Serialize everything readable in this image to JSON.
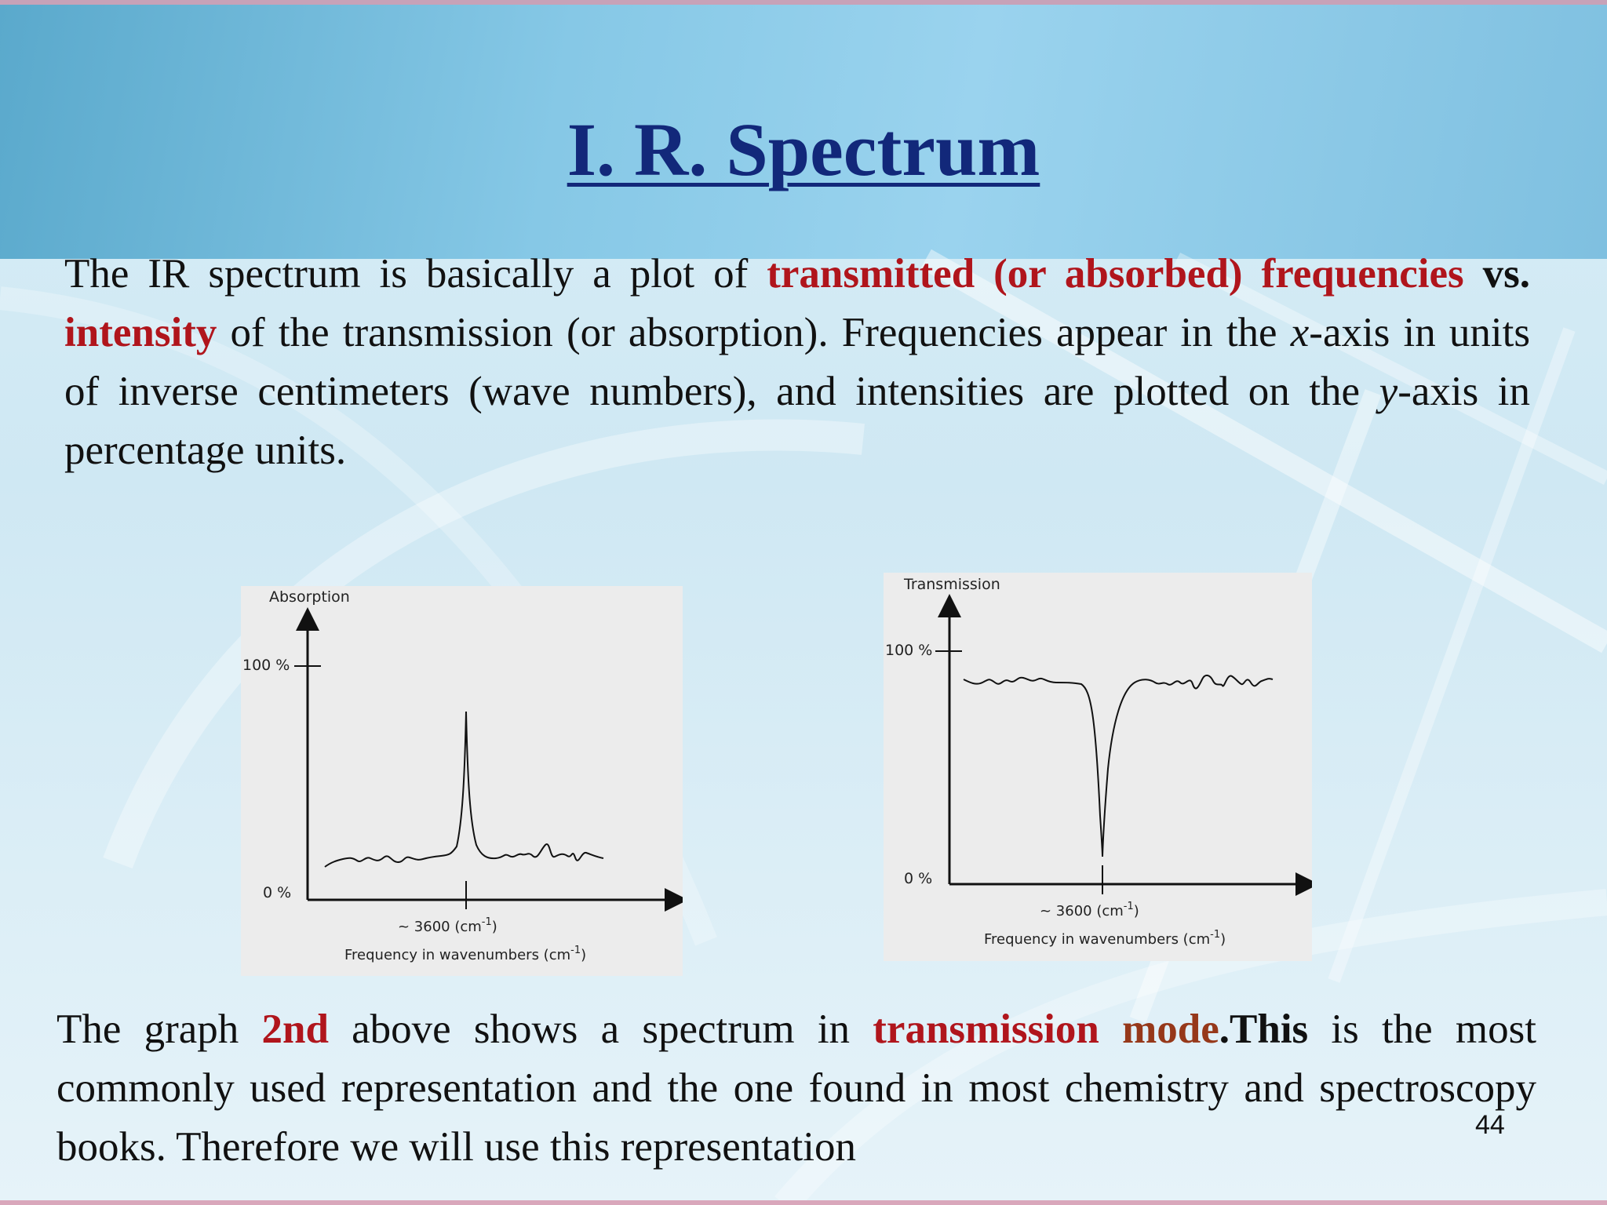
{
  "slide": {
    "title": " I. R. Spectrum",
    "page_number": "44"
  },
  "paragraph1": {
    "s1": "The IR spectrum is basically a plot of ",
    "s2": "transmitted (or absorbed) frequencies",
    "s3": " ",
    "s4": "vs.",
    "s5": " ",
    "s6": "intensity",
    "s7": " of the transmission (or absorption). Frequencies appear in the ",
    "s8": "x",
    "s9": "-axis in units of inverse centimeters (wave numbers), and intensities are plotted on the ",
    "s10": "y",
    "s11": "-axis in percentage units."
  },
  "paragraph2": {
    "s1": "The graph ",
    "s2": "2nd",
    "s3": " above shows a spectrum in ",
    "s4": "transmission ",
    "s5": "mode",
    "s6": ".This",
    "s7": " is the most commonly used representation and the one found in most chemistry and spectroscopy books. Therefore we will use this representation"
  },
  "figure_absorption": {
    "y_label": "Absorption",
    "tick_100": "100 %",
    "tick_0": "0 %",
    "peak_label": "~ 3600 (cm",
    "peak_label_sup": "-1",
    "peak_label_end": ")",
    "x_label": "Frequency in wavenumbers (cm",
    "x_label_sup": "-1",
    "x_label_end": ")"
  },
  "figure_transmission": {
    "y_label": "Transmission",
    "tick_100": "100 %",
    "tick_0": "0 %",
    "peak_label": "~ 3600 (cm",
    "peak_label_sup": "-1",
    "peak_label_end": ")",
    "x_label": "Frequency in wavenumbers (cm",
    "x_label_sup": "-1",
    "x_label_end": ")"
  },
  "colors": {
    "title": "#12287a",
    "highlight_red": "#b0151c",
    "highlight_brown": "#96381a"
  }
}
